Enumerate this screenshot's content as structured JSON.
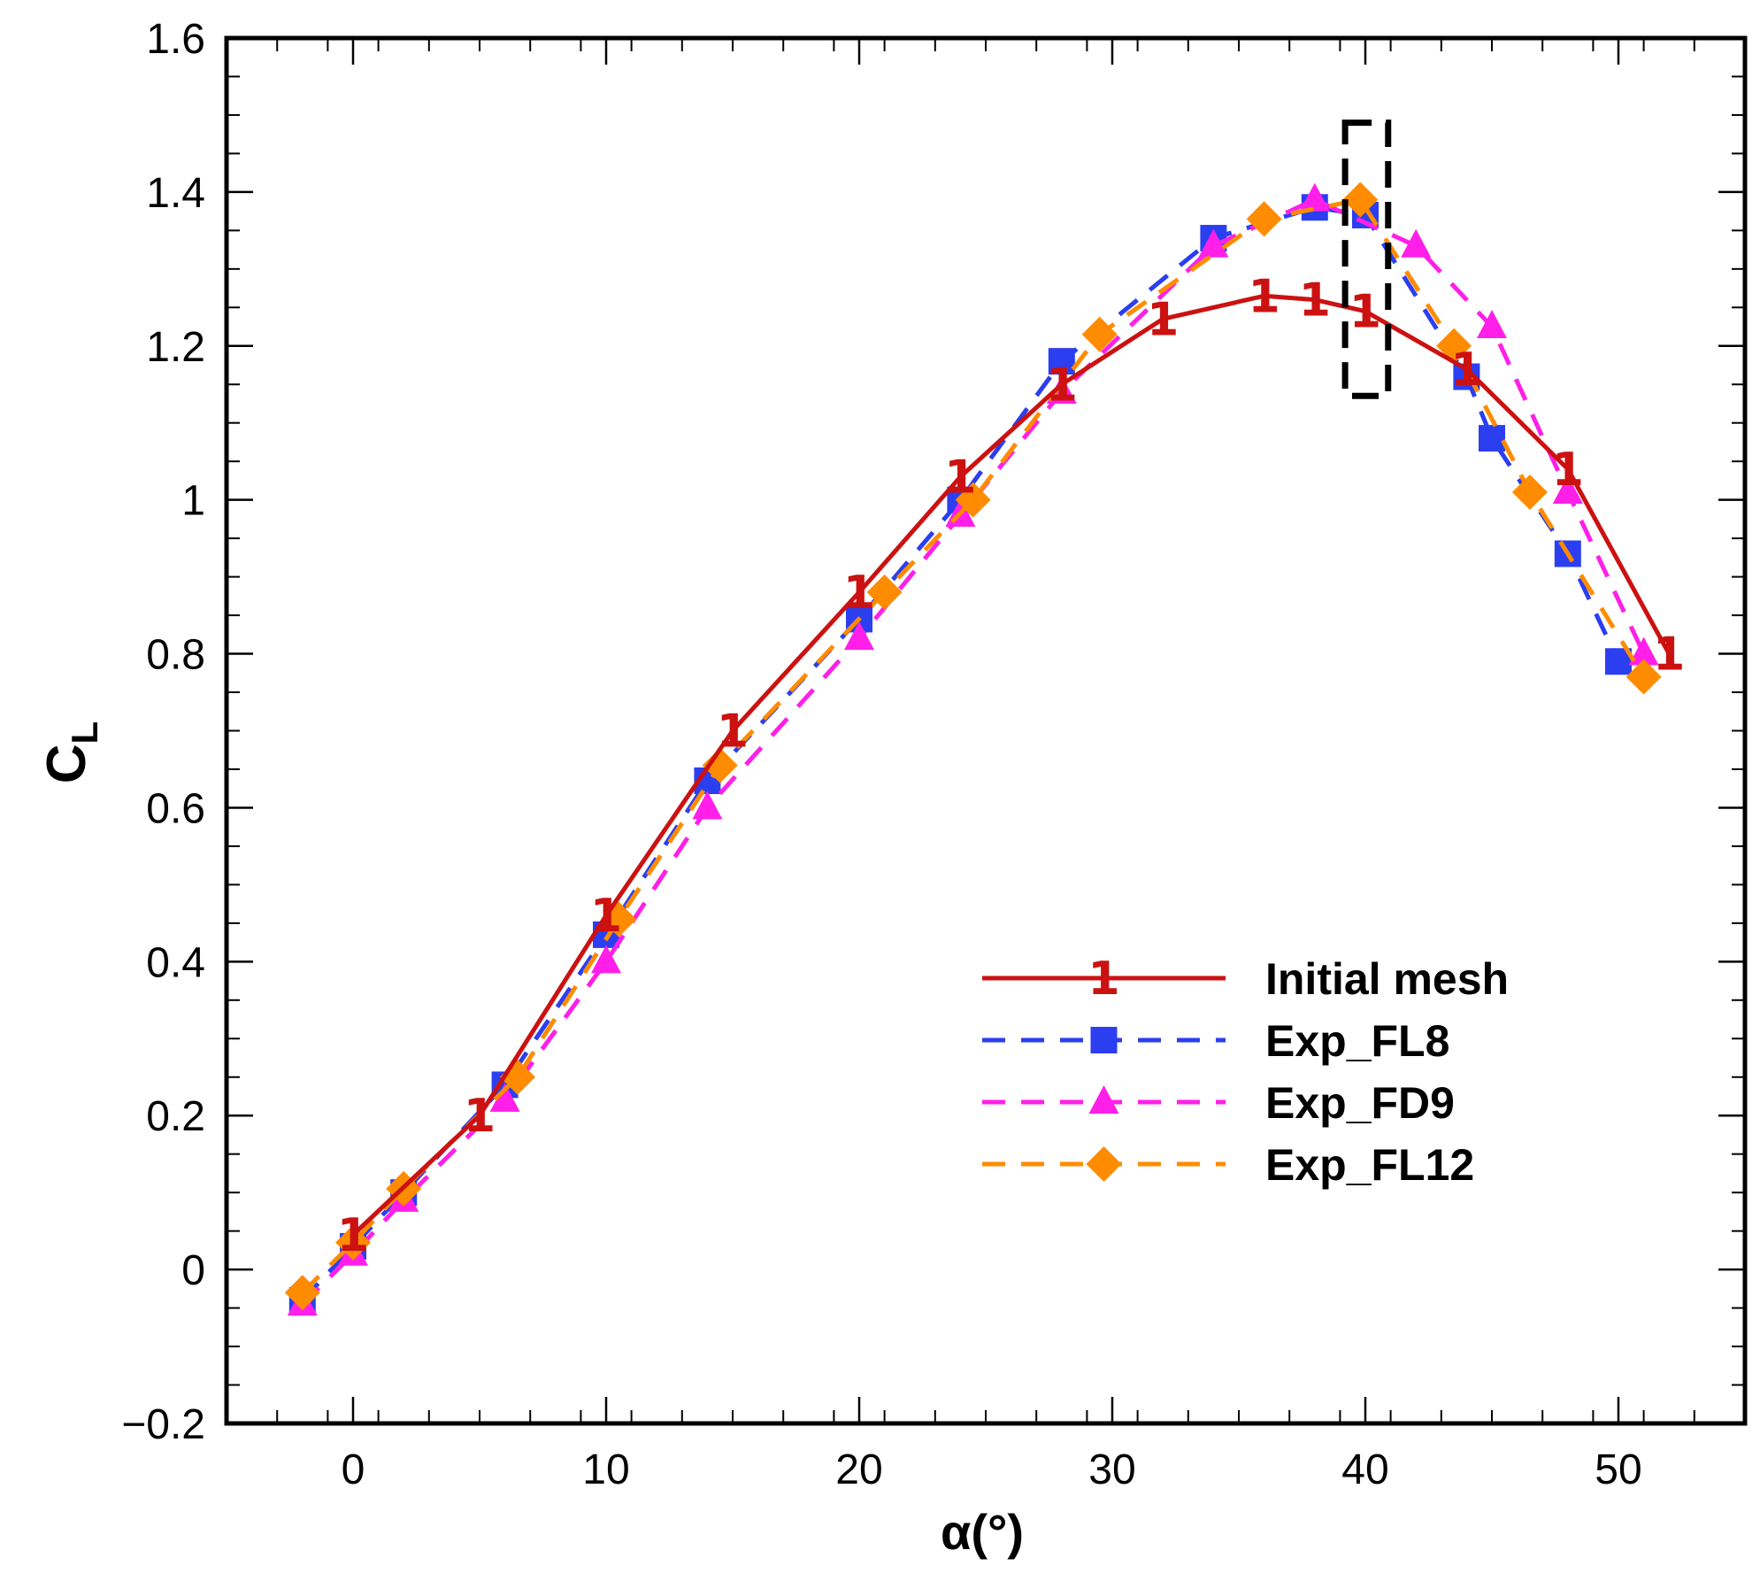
{
  "chart_data": {
    "type": "line",
    "title": "",
    "xlabel": "α(°)",
    "ylabel_main": "C",
    "ylabel_sub": "L",
    "xlim": [
      -5,
      55
    ],
    "ylim": [
      -0.2,
      1.6
    ],
    "xticks": [
      0,
      10,
      20,
      30,
      40,
      50
    ],
    "xtick_labels": [
      "0",
      "10",
      "20",
      "30",
      "40",
      "50"
    ],
    "yticks": [
      -0.2,
      0,
      0.2,
      0.4,
      0.6,
      0.8,
      1,
      1.2,
      1.4,
      1.6
    ],
    "ytick_labels": [
      "−0.2",
      "0",
      "0.2",
      "0.4",
      "0.6",
      "0.8",
      "1",
      "1.2",
      "1.4",
      "1.6"
    ],
    "grid": false,
    "legend_position": "bottom-right",
    "highlight_box": {
      "x_range": [
        39.2,
        40.9
      ],
      "y_range": [
        1.135,
        1.49
      ]
    },
    "series": [
      {
        "name": "Initial mesh",
        "color": "#cc1111",
        "dash": "solid",
        "marker": "1",
        "x": [
          0,
          5,
          10,
          15,
          20,
          24,
          28,
          32,
          36,
          38,
          40,
          44,
          48,
          52
        ],
        "y": [
          0.045,
          0.2,
          0.46,
          0.7,
          0.88,
          1.03,
          1.15,
          1.235,
          1.265,
          1.26,
          1.245,
          1.17,
          1.04,
          0.8
        ]
      },
      {
        "name": "Exp_FL8",
        "color": "#2b3ff0",
        "dash": "dash",
        "marker": "square",
        "x": [
          -2,
          0,
          2,
          6,
          10,
          14,
          20,
          24,
          28,
          34,
          38,
          40,
          44,
          45,
          48,
          50
        ],
        "y": [
          -0.04,
          0.03,
          0.1,
          0.24,
          0.435,
          0.635,
          0.845,
          1.0,
          1.18,
          1.34,
          1.38,
          1.37,
          1.16,
          1.08,
          0.93,
          0.79
        ]
      },
      {
        "name": "Exp_FD9",
        "color": "#ff1fe8",
        "dash": "dash",
        "marker": "triangle",
        "x": [
          -2,
          0,
          2,
          6,
          10,
          14,
          20,
          24,
          28,
          34,
          38,
          42,
          45,
          48,
          51
        ],
        "y": [
          -0.045,
          0.02,
          0.09,
          0.22,
          0.4,
          0.6,
          0.82,
          0.98,
          1.14,
          1.33,
          1.39,
          1.33,
          1.225,
          1.01,
          0.8
        ]
      },
      {
        "name": "Exp_FL12",
        "color": "#ff8c00",
        "dash": "dash",
        "marker": "diamond",
        "x": [
          -2,
          0,
          2,
          6.5,
          10.5,
          14.5,
          21,
          24.5,
          29.5,
          36,
          39.8,
          43.5,
          46.5,
          51
        ],
        "y": [
          -0.03,
          0.035,
          0.105,
          0.25,
          0.455,
          0.655,
          0.88,
          1.0,
          1.215,
          1.365,
          1.39,
          1.2,
          1.01,
          0.77
        ]
      }
    ]
  }
}
